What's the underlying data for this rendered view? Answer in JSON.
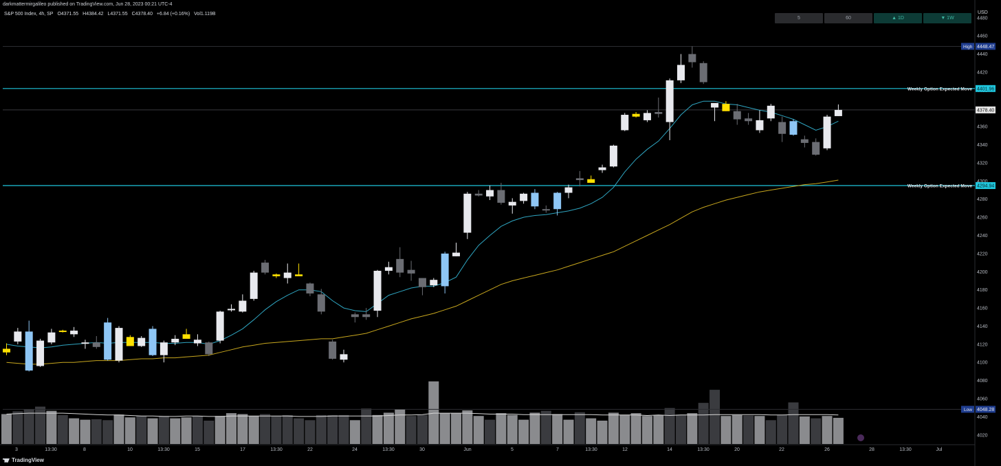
{
  "header": {
    "attribution": "darkmattermirgalileo published on TradingView.com, Jun 28, 2023 00:21 UTC-4",
    "symbol": "S&P 500 Index, 4h, SP",
    "open": "O4371.55",
    "high": "H4384.42",
    "low": "L4371.55",
    "close": "C4378.40",
    "change": "+6.84 (+0.16%)",
    "volume": "Vol1.119B"
  },
  "timeframes": [
    {
      "label": "5",
      "bg": "#2a2b2e",
      "fg": "#9aa0a8"
    },
    {
      "label": "60",
      "bg": "#2a2b2e",
      "fg": "#9aa0a8"
    },
    {
      "label": "▲ 1D",
      "bg": "#0d3b36",
      "fg": "#3fb8a4"
    },
    {
      "label": "▼ 1W",
      "bg": "#0d3b36",
      "fg": "#3fb8a4"
    }
  ],
  "footer": {
    "logo_text": "TradingView"
  },
  "colors": {
    "up": "#e8e9ee",
    "down": "#6b6d73",
    "yellow": "#ffe100",
    "blue": "#8ec6f5",
    "ema_short": "#2fa6c2",
    "ema_long": "#c9a81e",
    "expected_move": "#1fc6dd",
    "volume_light": "#8a8b8e",
    "volume_dark": "#3a3b3f",
    "volume_ma": "#d7d7d7",
    "high_tag": "#1f3d8f",
    "last_tag": "#e6e6e6"
  },
  "chart_data": {
    "type": "candlestick",
    "title": "",
    "y_axis": {
      "label": "USD",
      "range": [
        4010,
        4492
      ],
      "ticks": [
        4020,
        4040,
        4060,
        4080,
        4100,
        4120,
        4140,
        4160,
        4180,
        4200,
        4220,
        4240,
        4260,
        4280,
        4300,
        4320,
        4340,
        4360,
        4380,
        4400,
        4420,
        4440,
        4460,
        4480
      ]
    },
    "x_axis": {
      "ticks": [
        "3",
        "13:30",
        "8",
        "10",
        "13:30",
        "15",
        "17",
        "13:30",
        "22",
        "24",
        "13:30",
        "30",
        "Jun",
        "5",
        "7",
        "13:30",
        "12",
        "14",
        "13:30",
        "20",
        "22",
        "26",
        "28",
        "13:30",
        "Jul"
      ]
    },
    "candles": [
      {
        "o": 4115,
        "h": 4121,
        "l": 4108,
        "c": 4111,
        "color": "yellow"
      },
      {
        "o": 4123,
        "h": 4138,
        "l": 4120,
        "c": 4134,
        "color": "up"
      },
      {
        "o": 4134,
        "h": 4146,
        "l": 4090,
        "c": 4091,
        "color": "blue"
      },
      {
        "o": 4096,
        "h": 4126,
        "l": 4095,
        "c": 4124,
        "color": "up"
      },
      {
        "o": 4122,
        "h": 4137,
        "l": 4120,
        "c": 4133,
        "color": "up"
      },
      {
        "o": 4134,
        "h": 4136,
        "l": 4133,
        "c": 4135,
        "color": "yellow"
      },
      {
        "o": 4135,
        "h": 4139,
        "l": 4128,
        "c": 4131,
        "color": "up"
      },
      {
        "o": 4121,
        "h": 4125,
        "l": 4115,
        "c": 4122,
        "color": "up"
      },
      {
        "o": 4122,
        "h": 4129,
        "l": 4115,
        "c": 4117,
        "color": "down"
      },
      {
        "o": 4144,
        "h": 4149,
        "l": 4102,
        "c": 4103,
        "color": "blue"
      },
      {
        "o": 4102,
        "h": 4140,
        "l": 4100,
        "c": 4138,
        "color": "up"
      },
      {
        "o": 4128,
        "h": 4130,
        "l": 4118,
        "c": 4118,
        "color": "yellow"
      },
      {
        "o": 4118,
        "h": 4129,
        "l": 4117,
        "c": 4127,
        "color": "up"
      },
      {
        "o": 4137,
        "h": 4140,
        "l": 4107,
        "c": 4108,
        "color": "blue"
      },
      {
        "o": 4108,
        "h": 4124,
        "l": 4100,
        "c": 4122,
        "color": "up"
      },
      {
        "o": 4122,
        "h": 4130,
        "l": 4119,
        "c": 4126,
        "color": "up"
      },
      {
        "o": 4131,
        "h": 4137,
        "l": 4127,
        "c": 4126,
        "color": "yellow"
      },
      {
        "o": 4121,
        "h": 4131,
        "l": 4118,
        "c": 4125,
        "color": "up"
      },
      {
        "o": 4122,
        "h": 4123,
        "l": 4107,
        "c": 4109,
        "color": "down"
      },
      {
        "o": 4124,
        "h": 4157,
        "l": 4121,
        "c": 4156,
        "color": "up"
      },
      {
        "o": 4158,
        "h": 4164,
        "l": 4156,
        "c": 4159,
        "color": "up"
      },
      {
        "o": 4156,
        "h": 4175,
        "l": 4155,
        "c": 4168,
        "color": "up"
      },
      {
        "o": 4170,
        "h": 4201,
        "l": 4168,
        "c": 4199,
        "color": "up"
      },
      {
        "o": 4199,
        "h": 4213,
        "l": 4197,
        "c": 4210,
        "color": "down"
      },
      {
        "o": 4195,
        "h": 4198,
        "l": 4193,
        "c": 4197,
        "color": "yellow"
      },
      {
        "o": 4193,
        "h": 4209,
        "l": 4187,
        "c": 4199,
        "color": "up"
      },
      {
        "o": 4197,
        "h": 4209,
        "l": 4196,
        "c": 4195,
        "color": "yellow"
      },
      {
        "o": 4176,
        "h": 4188,
        "l": 4173,
        "c": 4187,
        "color": "down"
      },
      {
        "o": 4175,
        "h": 4181,
        "l": 4153,
        "c": 4156,
        "color": "down"
      },
      {
        "o": 4123,
        "h": 4125,
        "l": 4103,
        "c": 4104,
        "color": "down"
      },
      {
        "o": 4103,
        "h": 4114,
        "l": 4100,
        "c": 4109,
        "color": "up"
      },
      {
        "o": 4150,
        "h": 4155,
        "l": 4144,
        "c": 4153,
        "color": "down"
      },
      {
        "o": 4153,
        "h": 4160,
        "l": 4147,
        "c": 4150,
        "color": "down"
      },
      {
        "o": 4157,
        "h": 4202,
        "l": 4150,
        "c": 4201,
        "color": "up"
      },
      {
        "o": 4201,
        "h": 4211,
        "l": 4197,
        "c": 4205,
        "color": "up"
      },
      {
        "o": 4214,
        "h": 4227,
        "l": 4194,
        "c": 4199,
        "color": "down"
      },
      {
        "o": 4198,
        "h": 4212,
        "l": 4190,
        "c": 4202,
        "color": "down"
      },
      {
        "o": 4183,
        "h": 4189,
        "l": 4174,
        "c": 4193,
        "color": "down"
      },
      {
        "o": 4185,
        "h": 4193,
        "l": 4183,
        "c": 4191,
        "color": "up"
      },
      {
        "o": 4220,
        "h": 4222,
        "l": 4176,
        "c": 4184,
        "color": "blue"
      },
      {
        "o": 4217,
        "h": 4232,
        "l": 4217,
        "c": 4221,
        "color": "up"
      },
      {
        "o": 4243,
        "h": 4288,
        "l": 4236,
        "c": 4286,
        "color": "up"
      },
      {
        "o": 4286,
        "h": 4290,
        "l": 4283,
        "c": 4284,
        "color": "down"
      },
      {
        "o": 4283,
        "h": 4295,
        "l": 4279,
        "c": 4290,
        "color": "up"
      },
      {
        "o": 4290,
        "h": 4298,
        "l": 4274,
        "c": 4276,
        "color": "down"
      },
      {
        "o": 4273,
        "h": 4281,
        "l": 4264,
        "c": 4277,
        "color": "up"
      },
      {
        "o": 4278,
        "h": 4287,
        "l": 4275,
        "c": 4286,
        "color": "up"
      },
      {
        "o": 4287,
        "h": 4291,
        "l": 4269,
        "c": 4272,
        "color": "blue"
      },
      {
        "o": 4268,
        "h": 4273,
        "l": 4265,
        "c": 4269,
        "color": "down"
      },
      {
        "o": 4269,
        "h": 4288,
        "l": 4262,
        "c": 4287,
        "color": "blue"
      },
      {
        "o": 4287,
        "h": 4296,
        "l": 4281,
        "c": 4293,
        "color": "up"
      },
      {
        "o": 4301,
        "h": 4311,
        "l": 4294,
        "c": 4303,
        "color": "down"
      },
      {
        "o": 4302,
        "h": 4306,
        "l": 4298,
        "c": 4298,
        "color": "yellow"
      },
      {
        "o": 4312,
        "h": 4318,
        "l": 4309,
        "c": 4315,
        "color": "up"
      },
      {
        "o": 4316,
        "h": 4340,
        "l": 4315,
        "c": 4339,
        "color": "up"
      },
      {
        "o": 4356,
        "h": 4375,
        "l": 4355,
        "c": 4373,
        "color": "up"
      },
      {
        "o": 4374,
        "h": 4376,
        "l": 4370,
        "c": 4371,
        "color": "yellow"
      },
      {
        "o": 4367,
        "h": 4378,
        "l": 4365,
        "c": 4375,
        "color": "up"
      },
      {
        "o": 4376,
        "h": 4392,
        "l": 4370,
        "c": 4374,
        "color": "down"
      },
      {
        "o": 4365,
        "h": 4413,
        "l": 4345,
        "c": 4411,
        "color": "up"
      },
      {
        "o": 4411,
        "h": 4440,
        "l": 4408,
        "c": 4428,
        "color": "up"
      },
      {
        "o": 4440,
        "h": 4448.47,
        "l": 4425,
        "c": 4431,
        "color": "down"
      },
      {
        "o": 4430,
        "h": 4432,
        "l": 4407,
        "c": 4409,
        "color": "down"
      },
      {
        "o": 4381,
        "h": 4383,
        "l": 4366,
        "c": 4386,
        "color": "up"
      },
      {
        "o": 4385,
        "h": 4388,
        "l": 4377,
        "c": 4377,
        "color": "yellow"
      },
      {
        "o": 4377,
        "h": 4385,
        "l": 4362,
        "c": 4368,
        "color": "down"
      },
      {
        "o": 4369,
        "h": 4375,
        "l": 4362,
        "c": 4366,
        "color": "down"
      },
      {
        "o": 4367,
        "h": 4378,
        "l": 4353,
        "c": 4356,
        "color": "up"
      },
      {
        "o": 4383,
        "h": 4385,
        "l": 4366,
        "c": 4369,
        "color": "up"
      },
      {
        "o": 4365,
        "h": 4371,
        "l": 4343,
        "c": 4352,
        "color": "down"
      },
      {
        "o": 4366,
        "h": 4368,
        "l": 4350,
        "c": 4351,
        "color": "blue"
      },
      {
        "o": 4346,
        "h": 4350,
        "l": 4337,
        "c": 4342,
        "color": "down"
      },
      {
        "o": 4343,
        "h": 4347,
        "l": 4328,
        "c": 4329,
        "color": "down"
      },
      {
        "o": 4336,
        "h": 4373,
        "l": 4334,
        "c": 4371,
        "color": "up"
      },
      {
        "o": 4371.55,
        "h": 4384.42,
        "l": 4371.55,
        "c": 4378.4,
        "color": "up"
      }
    ],
    "ema_short": [
      4120,
      4118,
      4117,
      4116,
      4117,
      4119,
      4120,
      4121,
      4122,
      4121,
      4122,
      4122,
      4122,
      4122,
      4121,
      4121,
      4122,
      4122,
      4120,
      4124,
      4130,
      4137,
      4147,
      4158,
      4167,
      4174,
      4180,
      4180,
      4178,
      4168,
      4160,
      4157,
      4156,
      4165,
      4174,
      4178,
      4182,
      4184,
      4184,
      4188,
      4194,
      4213,
      4229,
      4240,
      4250,
      4256,
      4260,
      4262,
      4263,
      4265,
      4267,
      4270,
      4275,
      4282,
      4293,
      4310,
      4324,
      4335,
      4344,
      4358,
      4373,
      4384,
      4388,
      4388,
      4385,
      4384,
      4381,
      4378,
      4376,
      4372,
      4368,
      4362,
      4356,
      4360,
      4366
    ],
    "ema_long": [
      4100,
      4099,
      4098,
      4098,
      4099,
      4100,
      4100,
      4101,
      4102,
      4102,
      4102,
      4103,
      4104,
      4104,
      4105,
      4105,
      4106,
      4107,
      4108,
      4111,
      4114,
      4117,
      4119,
      4121,
      4122,
      4123,
      4124,
      4125,
      4126,
      4126,
      4128,
      4130,
      4132,
      4136,
      4140,
      4144,
      4148,
      4151,
      4154,
      4158,
      4162,
      4168,
      4174,
      4180,
      4186,
      4190,
      4193,
      4196,
      4199,
      4202,
      4206,
      4210,
      4214,
      4218,
      4222,
      4228,
      4234,
      4240,
      4246,
      4252,
      4259,
      4266,
      4271,
      4275,
      4279,
      4282,
      4285,
      4288,
      4290,
      4292,
      4294,
      4296,
      4297,
      4299,
      4301
    ],
    "expected_move_levels": [
      {
        "label": "Weekly Option Expected Move",
        "value": 4401.96,
        "price": "4401.96"
      },
      {
        "label": "Weekly Option Expected Move",
        "value": 4294.94,
        "price": "4294.94"
      }
    ],
    "high": {
      "label": "High",
      "value": 4448.47,
      "price": "4448.47"
    },
    "low": {
      "label": "Low",
      "value": 4048.28,
      "price": "4048.28"
    },
    "last_price": {
      "value": 4378.4,
      "price": "4378.40"
    },
    "volume_relative": [
      0.64,
      0.7,
      0.74,
      0.8,
      0.71,
      0.62,
      0.55,
      0.52,
      0.53,
      0.51,
      0.63,
      0.57,
      0.6,
      0.55,
      0.6,
      0.55,
      0.57,
      0.6,
      0.5,
      0.6,
      0.66,
      0.64,
      0.6,
      0.64,
      0.6,
      0.62,
      0.55,
      0.51,
      0.62,
      0.62,
      0.62,
      0.51,
      0.76,
      0.62,
      0.67,
      0.74,
      0.6,
      0.62,
      1.34,
      0.66,
      0.66,
      0.72,
      0.6,
      0.52,
      0.66,
      0.62,
      0.52,
      0.67,
      0.71,
      0.64,
      0.52,
      0.68,
      0.55,
      0.5,
      0.67,
      0.62,
      0.66,
      0.6,
      0.62,
      0.77,
      0.63,
      0.66,
      0.88,
      1.16,
      0.6,
      0.62,
      0.61,
      0.6,
      0.51,
      0.62,
      0.89,
      0.59,
      0.55,
      0.6,
      0.56
    ],
    "volume_colors": [
      "light",
      "dark",
      "dark",
      "dark",
      "light",
      "dark",
      "light",
      "light",
      "dark",
      "dark",
      "light",
      "light",
      "dark",
      "light",
      "dark",
      "light",
      "light",
      "dark",
      "dark",
      "light",
      "light",
      "light",
      "light",
      "dark",
      "dark",
      "dark",
      "dark",
      "dark",
      "dark",
      "dark",
      "dark",
      "light",
      "dark",
      "light",
      "light",
      "light",
      "dark",
      "dark",
      "light",
      "light",
      "light",
      "light",
      "light",
      "dark",
      "light",
      "light",
      "light",
      "light",
      "dark",
      "light",
      "light",
      "dark",
      "light",
      "light",
      "light",
      "light",
      "light",
      "light",
      "light",
      "dark",
      "dark",
      "light",
      "dark",
      "dark",
      "light",
      "light",
      "dark",
      "light",
      "dark",
      "dark",
      "dark",
      "light",
      "dark",
      "light",
      "light"
    ],
    "volume_ma_relative": [
      0.64,
      0.65,
      0.66,
      0.66,
      0.66,
      0.66,
      0.65,
      0.64,
      0.63,
      0.62,
      0.62,
      0.61,
      0.6,
      0.6,
      0.59,
      0.59,
      0.6,
      0.6,
      0.59,
      0.59,
      0.6,
      0.6,
      0.6,
      0.6,
      0.6,
      0.6,
      0.59,
      0.59,
      0.59,
      0.6,
      0.6,
      0.6,
      0.6,
      0.6,
      0.61,
      0.62,
      0.62,
      0.63,
      0.66,
      0.66,
      0.66,
      0.66,
      0.65,
      0.64,
      0.64,
      0.64,
      0.63,
      0.63,
      0.63,
      0.63,
      0.63,
      0.63,
      0.63,
      0.62,
      0.62,
      0.62,
      0.62,
      0.61,
      0.62,
      0.61,
      0.62,
      0.62,
      0.62,
      0.63,
      0.63,
      0.63,
      0.63,
      0.63,
      0.62,
      0.62,
      0.63,
      0.63,
      0.63,
      0.63,
      0.62
    ]
  }
}
